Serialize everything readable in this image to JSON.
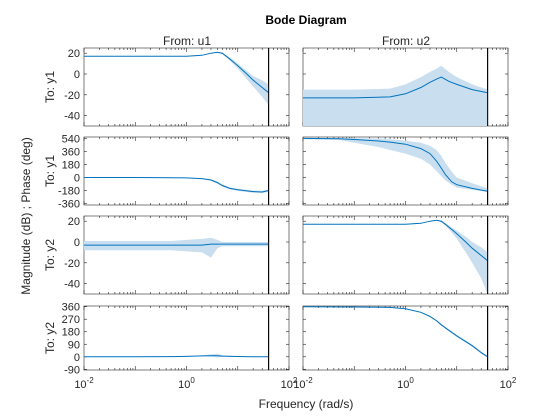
{
  "chart_data": {
    "type": "line",
    "title": "Bode Diagram",
    "xlabel": "Frequency  (rad/s)",
    "ylabel": "Magnitude (dB) ; Phase (deg)",
    "xscale": "log",
    "xlim": [
      0.01,
      100
    ],
    "xticks": [
      {
        "value": 0.01,
        "base": "10",
        "exp": "-2"
      },
      {
        "value": 1,
        "base": "10",
        "exp": "0"
      },
      {
        "value": 100,
        "base": "10",
        "exp": "2"
      }
    ],
    "nyquist_frequency": 40,
    "grid": false,
    "line_color": "#0072bd",
    "band_color": "#c9dff0",
    "columns": [
      "From: u1",
      "From: u2"
    ],
    "rows": [
      {
        "label": "To: y1",
        "kind": "magnitude",
        "ylim": [
          -50,
          25
        ],
        "yticks": [
          "20",
          "0",
          "-20",
          "-40"
        ],
        "ytick_values": [
          20,
          0,
          -20,
          -40
        ]
      },
      {
        "label": "To: y1",
        "kind": "phase",
        "ylim": [
          -380,
          560
        ],
        "yticks": [
          "540",
          "360",
          "180",
          "0",
          "-180",
          "-360"
        ],
        "ytick_values": [
          540,
          360,
          180,
          0,
          -180,
          -360
        ]
      },
      {
        "label": "To: y2",
        "kind": "magnitude",
        "ylim": [
          -50,
          25
        ],
        "yticks": [
          "20",
          "0",
          "-20",
          "-40"
        ],
        "ytick_values": [
          20,
          0,
          -20,
          -40
        ]
      },
      {
        "label": "To: y2",
        "kind": "phase",
        "ylim": [
          -95,
          365
        ],
        "yticks": [
          "360",
          "270",
          "180",
          "90",
          "0",
          "-90"
        ],
        "ytick_values": [
          360,
          270,
          180,
          90,
          0,
          -90
        ]
      }
    ],
    "series": [
      {
        "row": 0,
        "col": 0,
        "x": [
          0.01,
          0.1,
          0.5,
          1,
          2,
          3,
          4,
          5,
          6,
          8,
          10,
          15,
          20,
          30,
          40
        ],
        "y": [
          17,
          17,
          17,
          17,
          18,
          20,
          21,
          20,
          17,
          12,
          8,
          0,
          -6,
          -13,
          -18
        ],
        "lo": [
          17,
          17,
          17,
          17,
          18,
          20,
          21,
          19,
          16,
          10,
          5,
          -5,
          -12,
          -22,
          -30
        ],
        "hi": [
          17,
          17,
          17,
          17,
          18,
          20,
          21,
          21,
          18,
          14,
          10,
          3,
          -2,
          -6,
          -10
        ]
      },
      {
        "row": 0,
        "col": 1,
        "x": [
          0.01,
          0.1,
          0.5,
          1,
          2,
          3,
          4,
          5,
          7,
          10,
          20,
          40
        ],
        "y": [
          -23,
          -23,
          -22,
          -19,
          -13,
          -8,
          -5,
          -3,
          -7,
          -10,
          -15,
          -18
        ],
        "lo": [
          -50,
          -50,
          -50,
          -50,
          -50,
          -50,
          -50,
          -50,
          -50,
          -50,
          -50,
          -50
        ],
        "hi": [
          -15,
          -15,
          -14,
          -10,
          -3,
          2,
          5,
          8,
          2,
          -3,
          -10,
          -15
        ]
      },
      {
        "row": 1,
        "col": 0,
        "x": [
          0.01,
          0.1,
          0.5,
          1,
          2,
          3,
          4,
          5,
          7,
          10,
          20,
          30,
          40
        ],
        "y": [
          0,
          0,
          -2,
          -5,
          -15,
          -35,
          -70,
          -110,
          -150,
          -170,
          -195,
          -200,
          -180
        ],
        "lo": [
          -3,
          -3,
          -5,
          -8,
          -20,
          -45,
          -85,
          -125,
          -165,
          -185,
          -210,
          -215,
          -200
        ],
        "hi": [
          3,
          3,
          2,
          -2,
          -10,
          -25,
          -55,
          -95,
          -135,
          -155,
          -180,
          -185,
          -165
        ]
      },
      {
        "row": 1,
        "col": 1,
        "x": [
          0.01,
          0.05,
          0.1,
          0.3,
          0.5,
          1,
          2,
          3,
          4,
          5,
          6,
          8,
          10,
          20,
          40
        ],
        "y": [
          540,
          535,
          525,
          505,
          490,
          460,
          400,
          330,
          230,
          130,
          40,
          -60,
          -100,
          -150,
          -190
        ],
        "lo": [
          530,
          520,
          480,
          420,
          380,
          330,
          260,
          180,
          90,
          20,
          -40,
          -100,
          -140,
          -170,
          -200
        ],
        "hi": [
          545,
          545,
          545,
          540,
          530,
          510,
          480,
          440,
          380,
          300,
          200,
          80,
          0,
          -80,
          -150
        ]
      },
      {
        "row": 2,
        "col": 0,
        "x": [
          0.01,
          0.1,
          0.5,
          1,
          2,
          3,
          4,
          5,
          10,
          20,
          40
        ],
        "y": [
          -3,
          -3,
          -3,
          -3,
          -3,
          -2,
          -2,
          -2,
          -2,
          -2,
          -2
        ],
        "lo": [
          -8,
          -8,
          -8,
          -9,
          -10,
          -15,
          -6,
          -4,
          -4,
          -4,
          -4
        ],
        "hi": [
          1,
          1,
          1,
          2,
          3,
          4,
          2,
          0,
          0,
          0,
          0
        ]
      },
      {
        "row": 2,
        "col": 1,
        "x": [
          0.01,
          0.1,
          0.5,
          1,
          2,
          3,
          4,
          5,
          6,
          8,
          10,
          15,
          20,
          30,
          40
        ],
        "y": [
          17,
          17,
          17,
          17,
          18,
          20,
          21,
          20,
          17,
          12,
          8,
          0,
          -6,
          -13,
          -18
        ],
        "lo": [
          17,
          17,
          17,
          17,
          18,
          20,
          21,
          19,
          16,
          9,
          3,
          -10,
          -20,
          -35,
          -50
        ],
        "hi": [
          17,
          17,
          17,
          17,
          18,
          20,
          21,
          21,
          18,
          14,
          11,
          5,
          0,
          -5,
          -10
        ]
      },
      {
        "row": 3,
        "col": 0,
        "x": [
          0.01,
          0.1,
          0.5,
          1,
          2,
          3,
          4,
          5,
          10,
          20,
          40
        ],
        "y": [
          0,
          0,
          1,
          3,
          6,
          8,
          7,
          5,
          2,
          0,
          0
        ],
        "lo": [
          0,
          0,
          0,
          1,
          3,
          2,
          -5,
          0,
          0,
          0,
          0
        ],
        "hi": [
          0,
          0,
          3,
          6,
          10,
          18,
          22,
          12,
          4,
          1,
          0
        ]
      },
      {
        "row": 3,
        "col": 1,
        "x": [
          0.01,
          0.1,
          0.5,
          1,
          2,
          3,
          4,
          5,
          7,
          10,
          20,
          30,
          40
        ],
        "y": [
          360,
          358,
          355,
          345,
          320,
          290,
          260,
          230,
          190,
          150,
          80,
          30,
          0
        ],
        "lo": [
          360,
          357,
          353,
          342,
          316,
          285,
          254,
          224,
          183,
          143,
          72,
          22,
          -5
        ],
        "hi": [
          360,
          359,
          357,
          348,
          324,
          295,
          266,
          236,
          197,
          157,
          88,
          38,
          5
        ]
      }
    ]
  }
}
